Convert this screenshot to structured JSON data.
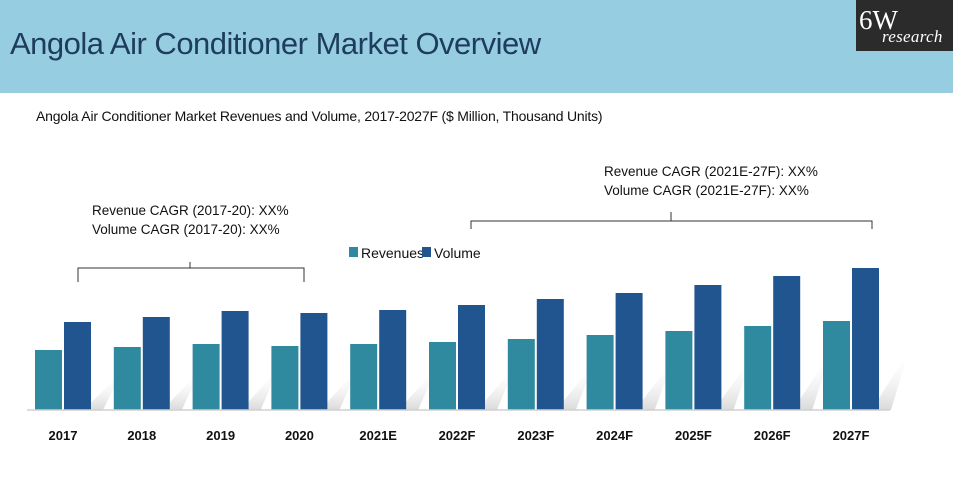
{
  "header": {
    "title": "Angola Air Conditioner Market Overview",
    "logo_main": "6W",
    "logo_sub": "research"
  },
  "annotations": {
    "left_line1": "Revenue CAGR (2017-20): XX%",
    "left_line2": "Volume CAGR (2017-20): XX%",
    "right_line1": "Revenue CAGR (2021E-27F): XX%",
    "right_line2": "Volume CAGR (2021E-27F): XX%"
  },
  "colors": {
    "header_bg": "#96cde0",
    "title": "#1d3c5e",
    "revenues": "#2f8aa0",
    "volume": "#21558f"
  },
  "chart_data": {
    "type": "bar",
    "title": "Angola Air Conditioner Market Revenues and Volume, 2017-2027F ($ Million, Thousand Units)",
    "categories": [
      "2017",
      "2018",
      "2019",
      "2020",
      "2021E",
      "2022F",
      "2023F",
      "2024F",
      "2025F",
      "2026F",
      "2027F"
    ],
    "series": [
      {
        "name": "Revenues",
        "values": [
          60,
          63,
          66,
          64,
          66,
          68,
          71,
          75,
          79,
          84,
          89
        ]
      },
      {
        "name": "Volume",
        "values": [
          88,
          93,
          99,
          97,
          100,
          105,
          111,
          117,
          125,
          134,
          142
        ]
      }
    ],
    "xlabel": "",
    "ylabel": "",
    "ylim": [
      0,
      160
    ],
    "grid": false,
    "legend": "top-center"
  }
}
